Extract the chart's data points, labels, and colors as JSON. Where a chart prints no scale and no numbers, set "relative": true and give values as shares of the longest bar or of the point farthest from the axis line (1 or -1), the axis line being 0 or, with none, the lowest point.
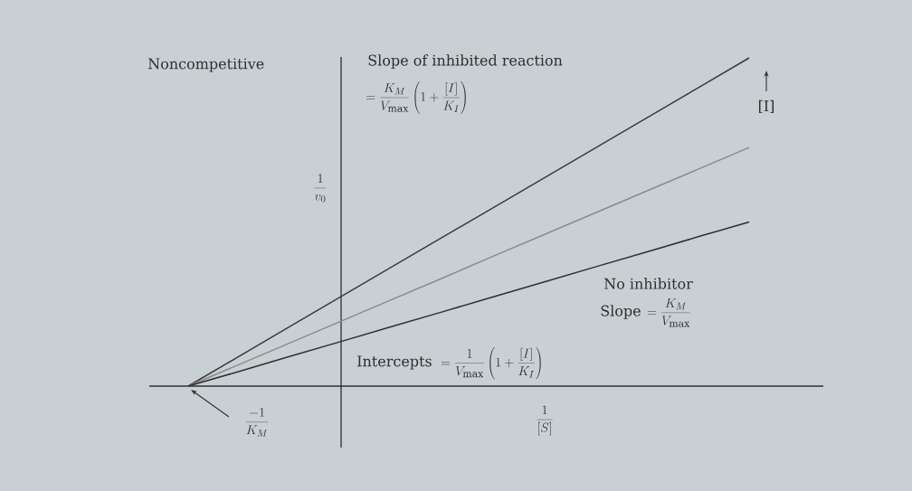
{
  "chart_data": {
    "type": "line",
    "title": "Noncompetitive",
    "xlabel": "\\frac{1}{[S]}",
    "ylabel": "\\frac{1}{v_0}",
    "categories": [
      null,
      null,
      null,
      null,
      null,
      null,
      null,
      null,
      null,
      null,
      null,
      null
    ],
    "relative": true,
    "series": [
      {
        "color": "#3a3a3a",
        "values": [
          0,
          0.091,
          0.182,
          0.273,
          0.364,
          0.455,
          0.545,
          0.636,
          0.727,
          0.818,
          0.909,
          1.0
        ]
      },
      {
        "color": "#8a8a8a",
        "values": [
          0,
          0.066,
          0.132,
          0.198,
          0.264,
          0.33,
          0.397,
          0.463,
          0.529,
          0.595,
          0.661,
          0.727
        ]
      },
      {
        "name": "No inhibitor",
        "color": "#2e2e2e",
        "values": [
          0,
          0.045,
          0.091,
          0.136,
          0.182,
          0.227,
          0.273,
          0.318,
          0.364,
          0.409,
          0.455,
          0.5
        ]
      }
    ],
    "annotations": [
      "Slope of inhibited reaction",
      "= \\frac{K_M}{V_{\\max}}\\left(1+\\frac{[I]}{K_I}\\right)",
      "[I]",
      "Slope",
      "= \\frac{K_M}{V_{\\max}}",
      "Intercepts",
      "= \\frac{1}{V_{\\max}}\\left(1+\\frac{[I]}{K_I}\\right)",
      "\\frac{-1}{K_M}"
    ]
  }
}
